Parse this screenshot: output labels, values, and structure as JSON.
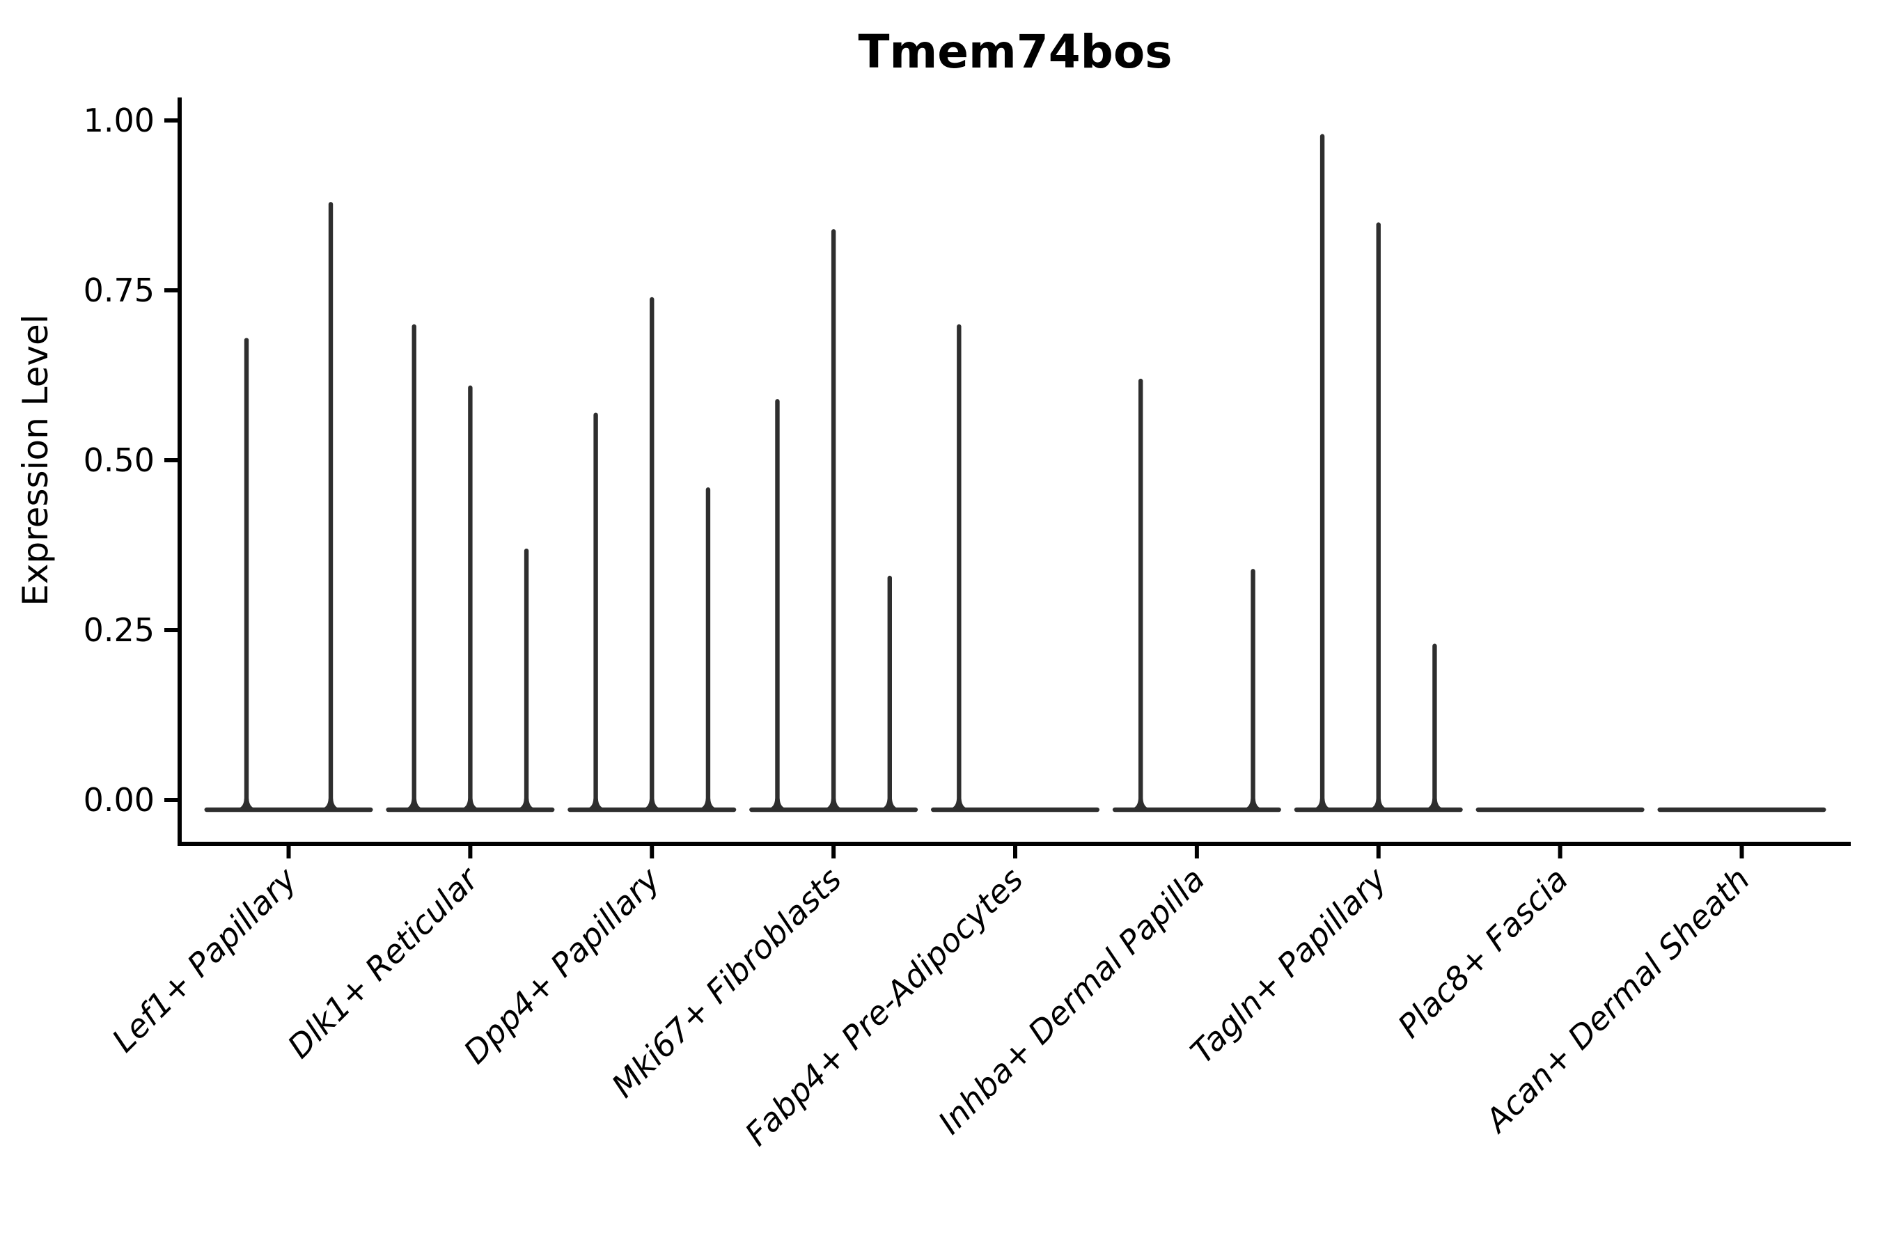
{
  "chart_data": {
    "type": "violin",
    "title": "Tmem74bos",
    "ylabel": "Expression Level",
    "xlabel": "",
    "ylim": [
      0,
      1.0
    ],
    "grid": false,
    "legend": "none",
    "yticks": [
      {
        "value": 1.0,
        "label": "1.00"
      },
      {
        "value": 0.75,
        "label": "0.75"
      },
      {
        "value": 0.5,
        "label": "0.50"
      },
      {
        "value": 0.25,
        "label": "0.25"
      },
      {
        "value": 0.0,
        "label": "0.00"
      }
    ],
    "categories": [
      "Lef1+ Papillary",
      "Dlk1+ Reticular",
      "Dpp4+ Papillary",
      "Mki67+ Fibroblasts",
      "Fabp4+ Pre-Adipocytes",
      "Inhba+ Dermal Papilla",
      "Tagln+ Papillary",
      "Plac8+ Fascia",
      "Acan+ Dermal Sheath"
    ],
    "groups": [
      {
        "label": "Lef1+ Papillary",
        "violin_max_values": [
          0.68,
          0.88
        ]
      },
      {
        "label": "Dlk1+ Reticular",
        "violin_max_values": [
          0.7,
          0.61,
          0.37
        ]
      },
      {
        "label": "Dpp4+ Papillary",
        "violin_max_values": [
          0.57,
          0.74,
          0.46
        ]
      },
      {
        "label": "Mki67+ Fibroblasts",
        "violin_max_values": [
          0.59,
          0.84,
          0.33
        ]
      },
      {
        "label": "Fabp4+ Pre-Adipocytes",
        "violin_max_values": [
          0.7,
          0,
          0
        ]
      },
      {
        "label": "Inhba+ Dermal Papilla",
        "violin_max_values": [
          0.62,
          0,
          0.34
        ]
      },
      {
        "label": "Tagln+ Papillary",
        "violin_max_values": [
          0.98,
          0.85,
          0.23
        ]
      },
      {
        "label": "Plac8+ Fascia",
        "violin_max_values": [
          0,
          0,
          0
        ]
      },
      {
        "label": "Acan+ Dermal Sheath",
        "violin_max_values": [
          0,
          0,
          0
        ]
      }
    ],
    "colors": {
      "violin_stroke": "#2e2e2e",
      "axis": "#000000",
      "background": "#ffffff"
    }
  }
}
